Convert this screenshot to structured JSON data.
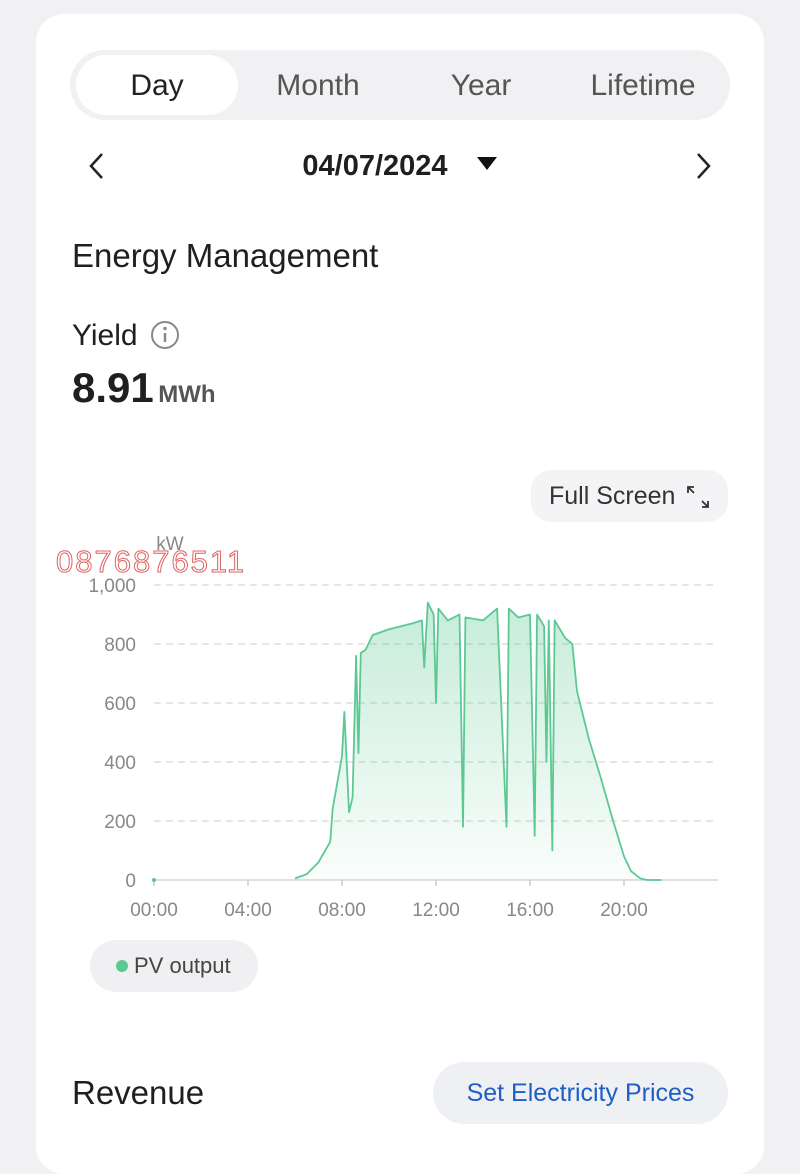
{
  "tabs": [
    "Day",
    "Month",
    "Year",
    "Lifetime"
  ],
  "date": "04/07/2024",
  "section_title": "Energy Management",
  "yield": {
    "label": "Yield",
    "value": 8.91,
    "unit": "MWh"
  },
  "full_screen": "Full Screen",
  "watermark": "0876876511",
  "chart_data": {
    "type": "line",
    "y_label": "kW",
    "x": [
      0,
      5.5,
      6.0,
      6.5,
      7.0,
      7.5,
      7.6,
      8.0,
      8.1,
      8.3,
      8.45,
      8.6,
      8.7,
      8.8,
      9.0,
      9.3,
      10.0,
      11.0,
      11.4,
      11.5,
      11.65,
      11.9,
      12.0,
      12.1,
      12.5,
      13.0,
      13.15,
      13.25,
      14.0,
      14.3,
      14.6,
      15.0,
      15.1,
      15.5,
      16.0,
      16.2,
      16.3,
      16.6,
      16.7,
      16.8,
      16.95,
      17.05,
      17.5,
      17.8,
      18.0,
      18.5,
      19.0,
      19.5,
      20.0,
      20.3,
      20.7,
      21.0,
      21.6
    ],
    "series": [
      {
        "name": "PV output",
        "color": "#5cc992",
        "values": [
          0,
          null,
          5,
          20,
          60,
          130,
          240,
          420,
          570,
          230,
          280,
          760,
          430,
          770,
          780,
          830,
          850,
          870,
          880,
          720,
          940,
          900,
          600,
          920,
          880,
          900,
          180,
          890,
          880,
          900,
          920,
          180,
          920,
          890,
          900,
          150,
          900,
          860,
          400,
          880,
          100,
          880,
          820,
          800,
          640,
          480,
          350,
          210,
          80,
          30,
          5,
          0,
          0
        ]
      }
    ],
    "xlim": [
      0,
      24
    ],
    "ylim": [
      0,
      1000
    ],
    "xticks": [
      {
        "value": 0,
        "label": "00:00"
      },
      {
        "value": 4,
        "label": "04:00"
      },
      {
        "value": 8,
        "label": "08:00"
      },
      {
        "value": 12,
        "label": "12:00"
      },
      {
        "value": 16,
        "label": "16:00"
      },
      {
        "value": 20,
        "label": "20:00"
      }
    ],
    "yticks": [
      0,
      200,
      400,
      600,
      800,
      {
        "value": 1000,
        "label": "1,000"
      }
    ],
    "grid": true
  },
  "revenue": {
    "title": "Revenue",
    "button": "Set Electricity Prices"
  }
}
